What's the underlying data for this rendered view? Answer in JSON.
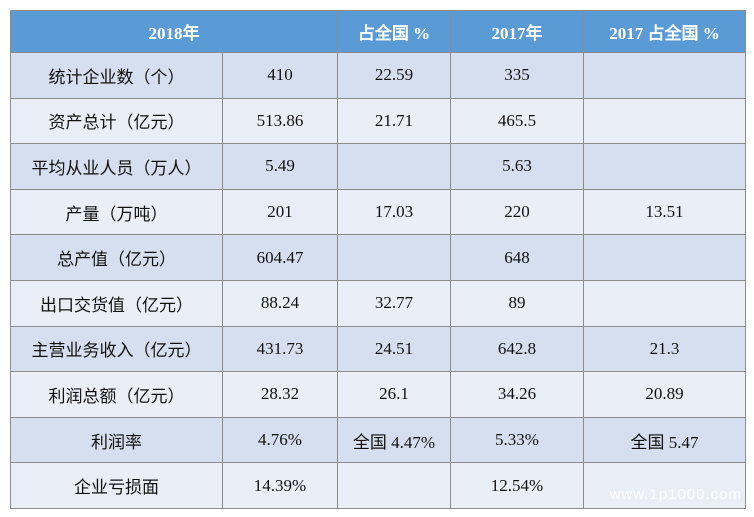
{
  "table": {
    "header": [
      "2018年",
      "占全国 %",
      "2017年",
      "2017 占全国 %"
    ],
    "rows": [
      [
        "统计企业数（个）",
        "410",
        "22.59",
        "335",
        null
      ],
      [
        "资产总计（亿元）",
        "513.86",
        "21.71",
        "465.5",
        null
      ],
      [
        "平均从业人员（万人）",
        "5.49",
        null,
        "5.63",
        null
      ],
      [
        "产量（万吨）",
        "201",
        "17.03",
        "220",
        "13.51"
      ],
      [
        "总产值（亿元）",
        "604.47",
        null,
        "648",
        null
      ],
      [
        "出口交货值（亿元）",
        "88.24",
        "32.77",
        "89",
        null
      ],
      [
        "主营业务收入（亿元）",
        "431.73",
        "24.51",
        "642.8",
        "21.3"
      ],
      [
        "利润总额（亿元）",
        "28.32",
        "26.1",
        "34.26",
        "20.89"
      ],
      [
        "利润率",
        "4.76%",
        "全国 4.47%",
        "5.33%",
        "全国 5.47"
      ],
      [
        "企业亏损面",
        "14.39%",
        null,
        "12.54%",
        null
      ]
    ]
  },
  "watermark": "www.1p1000.com"
}
